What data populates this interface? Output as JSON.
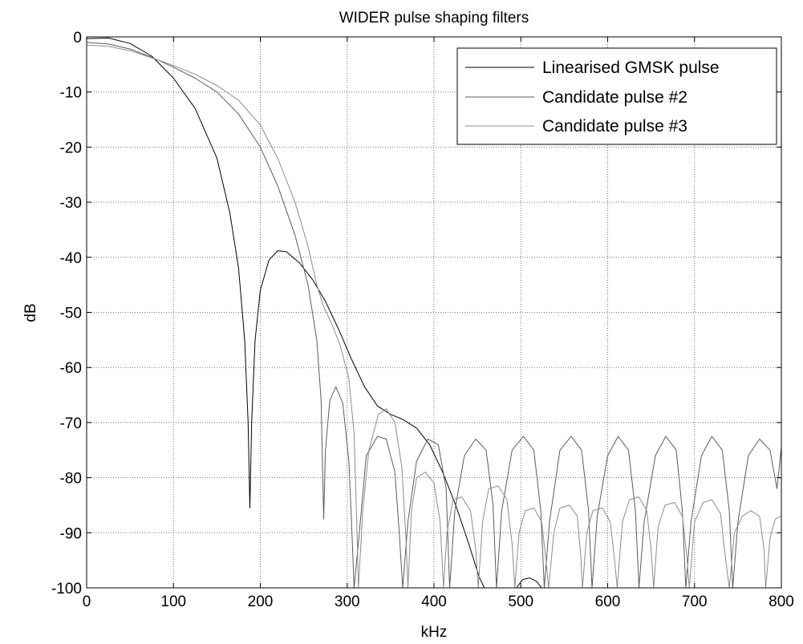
{
  "chart_data": {
    "type": "line",
    "title": "WIDER pulse shaping filters",
    "xlabel": "kHz",
    "ylabel": "dB",
    "xlim": [
      0,
      800
    ],
    "ylim": [
      -100,
      0
    ],
    "xticks": [
      0,
      100,
      200,
      300,
      400,
      500,
      600,
      700,
      800
    ],
    "yticks": [
      0,
      -10,
      -20,
      -30,
      -40,
      -50,
      -60,
      -70,
      -80,
      -90,
      -100
    ],
    "grid": true,
    "legend_position": "top-right",
    "series": [
      {
        "name": "Linearised GMSK pulse",
        "color": "#000000",
        "points": [
          [
            0,
            -0.3
          ],
          [
            25,
            -0.2
          ],
          [
            50,
            -1.2
          ],
          [
            75,
            -3.5
          ],
          [
            100,
            -7.5
          ],
          [
            125,
            -13
          ],
          [
            150,
            -22
          ],
          [
            165,
            -32
          ],
          [
            175,
            -42
          ],
          [
            182,
            -55
          ],
          [
            186,
            -70
          ],
          [
            188,
            -85.5
          ],
          [
            190,
            -70
          ],
          [
            194,
            -55
          ],
          [
            200,
            -46
          ],
          [
            210,
            -40.5
          ],
          [
            220,
            -38.8
          ],
          [
            230,
            -39
          ],
          [
            245,
            -41
          ],
          [
            260,
            -44
          ],
          [
            275,
            -48
          ],
          [
            290,
            -53
          ],
          [
            305,
            -58.5
          ],
          [
            320,
            -63.5
          ],
          [
            335,
            -67
          ],
          [
            350,
            -68.5
          ],
          [
            365,
            -69.5
          ],
          [
            380,
            -71
          ],
          [
            395,
            -74
          ],
          [
            410,
            -79
          ],
          [
            425,
            -85
          ],
          [
            440,
            -92
          ],
          [
            452,
            -98
          ],
          [
            458,
            -100
          ],
          [
            495,
            -100
          ],
          [
            502,
            -98.5
          ],
          [
            510,
            -98.2
          ],
          [
            518,
            -98.8
          ],
          [
            524,
            -100
          ]
        ]
      },
      {
        "name": "Candidate pulse #2",
        "color": "#5c5c5c",
        "points": [
          [
            0,
            -1
          ],
          [
            25,
            -1.3
          ],
          [
            50,
            -2.2
          ],
          [
            75,
            -3.7
          ],
          [
            100,
            -5.5
          ],
          [
            125,
            -7.5
          ],
          [
            150,
            -10
          ],
          [
            175,
            -14
          ],
          [
            200,
            -20
          ],
          [
            220,
            -27
          ],
          [
            240,
            -36
          ],
          [
            255,
            -45
          ],
          [
            265,
            -55
          ],
          [
            270,
            -66
          ],
          [
            272,
            -80
          ],
          [
            273,
            -87.5
          ],
          [
            275,
            -75
          ],
          [
            280,
            -66
          ],
          [
            287,
            -63.5
          ],
          [
            295,
            -66.5
          ],
          [
            302,
            -77
          ],
          [
            305,
            -88
          ],
          [
            308,
            -100
          ],
          [
            314,
            -90
          ],
          [
            322,
            -76
          ],
          [
            335,
            -72.5
          ],
          [
            345,
            -73
          ],
          [
            355,
            -79
          ],
          [
            360,
            -90
          ],
          [
            364,
            -100
          ],
          [
            370,
            -88
          ],
          [
            380,
            -77
          ],
          [
            393,
            -73
          ],
          [
            405,
            -74
          ],
          [
            414,
            -82
          ],
          [
            418,
            -100
          ],
          [
            424,
            -86
          ],
          [
            435,
            -76
          ],
          [
            448,
            -73
          ],
          [
            460,
            -75
          ],
          [
            468,
            -85
          ],
          [
            472,
            -100
          ],
          [
            478,
            -86
          ],
          [
            490,
            -75
          ],
          [
            503,
            -72.5
          ],
          [
            515,
            -75
          ],
          [
            523,
            -86
          ],
          [
            527,
            -100
          ],
          [
            533,
            -88
          ],
          [
            545,
            -75
          ],
          [
            558,
            -72.5
          ],
          [
            570,
            -75
          ],
          [
            578,
            -86
          ],
          [
            582,
            -100
          ],
          [
            588,
            -87
          ],
          [
            600,
            -76
          ],
          [
            612,
            -72.5
          ],
          [
            624,
            -75
          ],
          [
            632,
            -86
          ],
          [
            636,
            -100
          ],
          [
            642,
            -88
          ],
          [
            655,
            -76
          ],
          [
            667,
            -72.5
          ],
          [
            679,
            -75
          ],
          [
            686,
            -86
          ],
          [
            690,
            -100
          ],
          [
            696,
            -88
          ],
          [
            708,
            -76
          ],
          [
            720,
            -72.5
          ],
          [
            732,
            -75
          ],
          [
            740,
            -86
          ],
          [
            744,
            -100
          ],
          [
            750,
            -88
          ],
          [
            762,
            -76
          ],
          [
            775,
            -73
          ],
          [
            787,
            -75
          ],
          [
            795,
            -82
          ],
          [
            800,
            -74.5
          ]
        ]
      },
      {
        "name": "Candidate pulse #3",
        "color": "#8c8c8c",
        "points": [
          [
            0,
            -1.5
          ],
          [
            25,
            -1.7
          ],
          [
            50,
            -2.5
          ],
          [
            75,
            -3.8
          ],
          [
            100,
            -5.2
          ],
          [
            125,
            -6.8
          ],
          [
            150,
            -8.8
          ],
          [
            175,
            -11.5
          ],
          [
            200,
            -16
          ],
          [
            220,
            -22
          ],
          [
            240,
            -30
          ],
          [
            255,
            -38
          ],
          [
            265,
            -45
          ],
          [
            273,
            -49
          ],
          [
            282,
            -52
          ],
          [
            292,
            -56
          ],
          [
            302,
            -62
          ],
          [
            308,
            -72
          ],
          [
            311,
            -88
          ],
          [
            313,
            -100
          ],
          [
            318,
            -86
          ],
          [
            325,
            -75
          ],
          [
            336,
            -68.5
          ],
          [
            345,
            -67.5
          ],
          [
            355,
            -70
          ],
          [
            363,
            -78
          ],
          [
            368,
            -92
          ],
          [
            370,
            -100
          ],
          [
            374,
            -86
          ],
          [
            380,
            -80
          ],
          [
            390,
            -79
          ],
          [
            400,
            -81
          ],
          [
            407,
            -88
          ],
          [
            411,
            -100
          ],
          [
            415,
            -90
          ],
          [
            422,
            -84
          ],
          [
            432,
            -83.5
          ],
          [
            442,
            -86
          ],
          [
            448,
            -93
          ],
          [
            451,
            -100
          ],
          [
            456,
            -88
          ],
          [
            463,
            -82
          ],
          [
            474,
            -81.5
          ],
          [
            484,
            -84
          ],
          [
            490,
            -92
          ],
          [
            493,
            -100
          ],
          [
            498,
            -90
          ],
          [
            505,
            -86
          ],
          [
            515,
            -85.5
          ],
          [
            524,
            -88
          ],
          [
            529,
            -95
          ],
          [
            532,
            -100
          ],
          [
            538,
            -90
          ],
          [
            545,
            -85.5
          ],
          [
            556,
            -85
          ],
          [
            565,
            -87
          ],
          [
            569,
            -94
          ],
          [
            571,
            -100
          ],
          [
            576,
            -90
          ],
          [
            583,
            -86
          ],
          [
            594,
            -85.5
          ],
          [
            603,
            -88
          ],
          [
            608,
            -95
          ],
          [
            611,
            -100
          ],
          [
            617,
            -88
          ],
          [
            625,
            -84
          ],
          [
            636,
            -83.5
          ],
          [
            645,
            -86
          ],
          [
            650,
            -93
          ],
          [
            653,
            -100
          ],
          [
            658,
            -89
          ],
          [
            666,
            -85
          ],
          [
            677,
            -84.5
          ],
          [
            686,
            -87
          ],
          [
            691,
            -94
          ],
          [
            694,
            -100
          ],
          [
            700,
            -88
          ],
          [
            710,
            -84.5
          ],
          [
            720,
            -84
          ],
          [
            730,
            -86.5
          ],
          [
            736,
            -95
          ],
          [
            740,
            -100
          ],
          [
            746,
            -90
          ],
          [
            755,
            -87
          ],
          [
            765,
            -86
          ],
          [
            775,
            -87
          ],
          [
            780,
            -93
          ],
          [
            782,
            -100
          ],
          [
            787,
            -91
          ],
          [
            793,
            -87.5
          ],
          [
            800,
            -87
          ]
        ]
      }
    ]
  }
}
